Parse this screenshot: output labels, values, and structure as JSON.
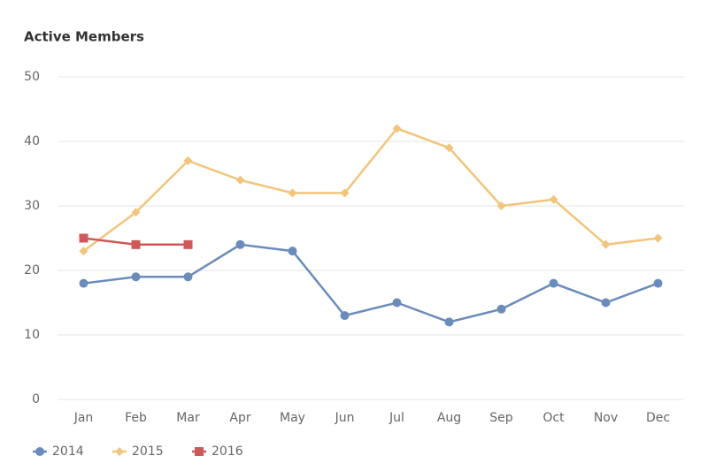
{
  "chart_data": {
    "type": "line",
    "title": "Active Members",
    "categories": [
      "Jan",
      "Feb",
      "Mar",
      "Apr",
      "May",
      "Jun",
      "Jul",
      "Aug",
      "Sep",
      "Oct",
      "Nov",
      "Dec"
    ],
    "series": [
      {
        "name": "2014",
        "color": "#6a8cbb",
        "marker": "circle",
        "values": [
          18,
          19,
          19,
          24,
          23,
          13,
          15,
          12,
          14,
          18,
          15,
          18
        ]
      },
      {
        "name": "2015",
        "color": "#f2c57c",
        "marker": "diamond",
        "values": [
          23,
          29,
          37,
          34,
          32,
          32,
          42,
          39,
          30,
          31,
          24,
          25
        ]
      },
      {
        "name": "2016",
        "color": "#cf5858",
        "marker": "square",
        "values": [
          25,
          24,
          24,
          null,
          null,
          null,
          null,
          null,
          null,
          null,
          null,
          null
        ]
      }
    ],
    "ylim": [
      0,
      50
    ],
    "yticks": [
      0,
      10,
      20,
      30,
      40,
      50
    ],
    "grid": true,
    "legend": "bottom-left"
  }
}
